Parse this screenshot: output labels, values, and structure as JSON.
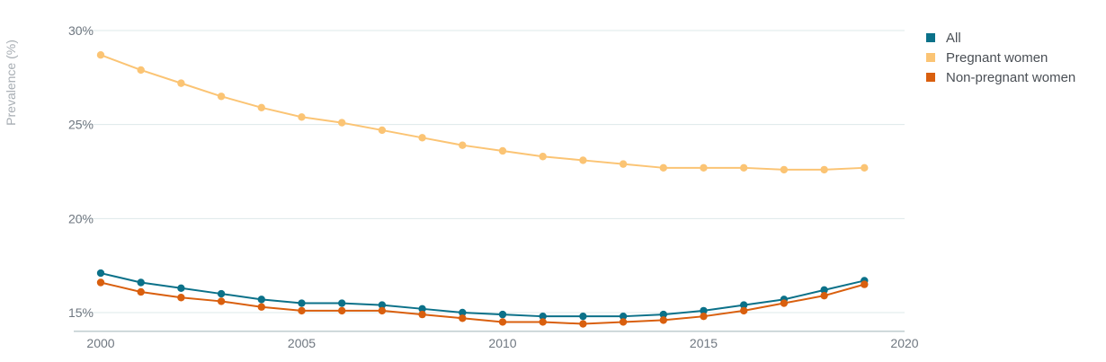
{
  "chart_data": {
    "type": "line",
    "ylabel": "Prevalence (%)",
    "xlabel": "",
    "x": [
      2000,
      2001,
      2002,
      2003,
      2004,
      2005,
      2006,
      2007,
      2008,
      2009,
      2010,
      2011,
      2012,
      2013,
      2014,
      2015,
      2016,
      2017,
      2018,
      2019
    ],
    "xlim": [
      2000,
      2020
    ],
    "ylim": [
      14,
      30
    ],
    "x_ticks": [
      2000,
      2005,
      2010,
      2015,
      2020
    ],
    "x_tick_labels": [
      "2000",
      "2005",
      "2010",
      "2015",
      "2020"
    ],
    "y_ticks": [
      15,
      20,
      25,
      30
    ],
    "y_tick_labels": [
      "15%",
      "20%",
      "25%",
      "30%"
    ],
    "grid": true,
    "legend_position": "top-right",
    "series": [
      {
        "name": "All",
        "color": "#0b7189",
        "values": [
          17.1,
          16.6,
          16.3,
          16.0,
          15.7,
          15.5,
          15.5,
          15.4,
          15.2,
          15.0,
          14.9,
          14.8,
          14.8,
          14.8,
          14.9,
          15.1,
          15.4,
          15.7,
          16.2,
          16.7
        ]
      },
      {
        "name": "Pregnant women",
        "color": "#fbc474",
        "values": [
          28.7,
          27.9,
          27.2,
          26.5,
          25.9,
          25.4,
          25.1,
          24.7,
          24.3,
          23.9,
          23.6,
          23.3,
          23.1,
          22.9,
          22.7,
          22.7,
          22.7,
          22.6,
          22.6,
          22.7
        ]
      },
      {
        "name": "Non-pregnant women",
        "color": "#d95f0e",
        "values": [
          16.6,
          16.1,
          15.8,
          15.6,
          15.3,
          15.1,
          15.1,
          15.1,
          14.9,
          14.7,
          14.5,
          14.5,
          14.4,
          14.5,
          14.6,
          14.8,
          15.1,
          15.5,
          15.9,
          16.5
        ]
      }
    ]
  }
}
